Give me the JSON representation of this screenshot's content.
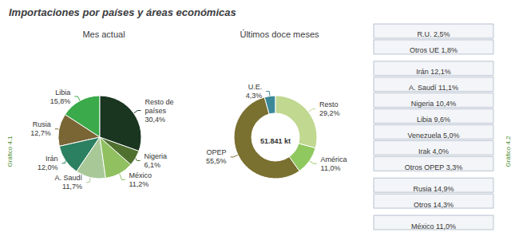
{
  "title": "Importaciones por países y áreas económicas",
  "chart_data": [
    {
      "type": "pie",
      "title": "Mes actual",
      "categories": [
        "Libia",
        "Rusia",
        "Irán",
        "A. Saudí",
        "México",
        "Nigeria",
        "Resto de\npaíses"
      ],
      "values": [
        15.8,
        12.7,
        12.0,
        11.7,
        11.2,
        6.1,
        30.4
      ],
      "value_labels": [
        "15,8%",
        "12,7%",
        "12,0%",
        "11,7%",
        "11,2%",
        "6,1%",
        "30,4%"
      ],
      "colors": [
        "#3aaa4a",
        "#7a6535",
        "#2a8060",
        "#a8c898",
        "#90c060",
        "#507030",
        "#1a3520"
      ],
      "data_labels": true,
      "annotations": [
        "Gráfico 4.1"
      ]
    },
    {
      "type": "donut",
      "title": "Últimos doce meses",
      "categories": [
        "U.E.",
        "OPEP",
        "América",
        "Resto"
      ],
      "values": [
        4.3,
        55.5,
        11.0,
        29.2
      ],
      "value_labels": [
        "4,3%",
        "55,5%",
        "11,0%",
        "29,2%"
      ],
      "colors": [
        "#3a8898",
        "#7a7030",
        "#90c860",
        "#c0d890"
      ],
      "data_labels": true,
      "center_text": "51.841 kt",
      "breakdown": [
        [
          "R.U. 2,5%",
          "Otros UE 1,8%"
        ],
        [
          "Irán 12,1%",
          "A. Saudí 11,1%",
          "Nigeria 10,4%",
          "Libia 9,6%",
          "Venezuela 5,0%",
          "Irak 4,0%",
          "Otros OPEP 3,3%"
        ],
        [
          "Rusia 14,9%",
          "Otros 14,3%"
        ],
        [
          "México 11,0%"
        ]
      ],
      "annotations": [
        "Gráfico 4.2"
      ]
    }
  ]
}
